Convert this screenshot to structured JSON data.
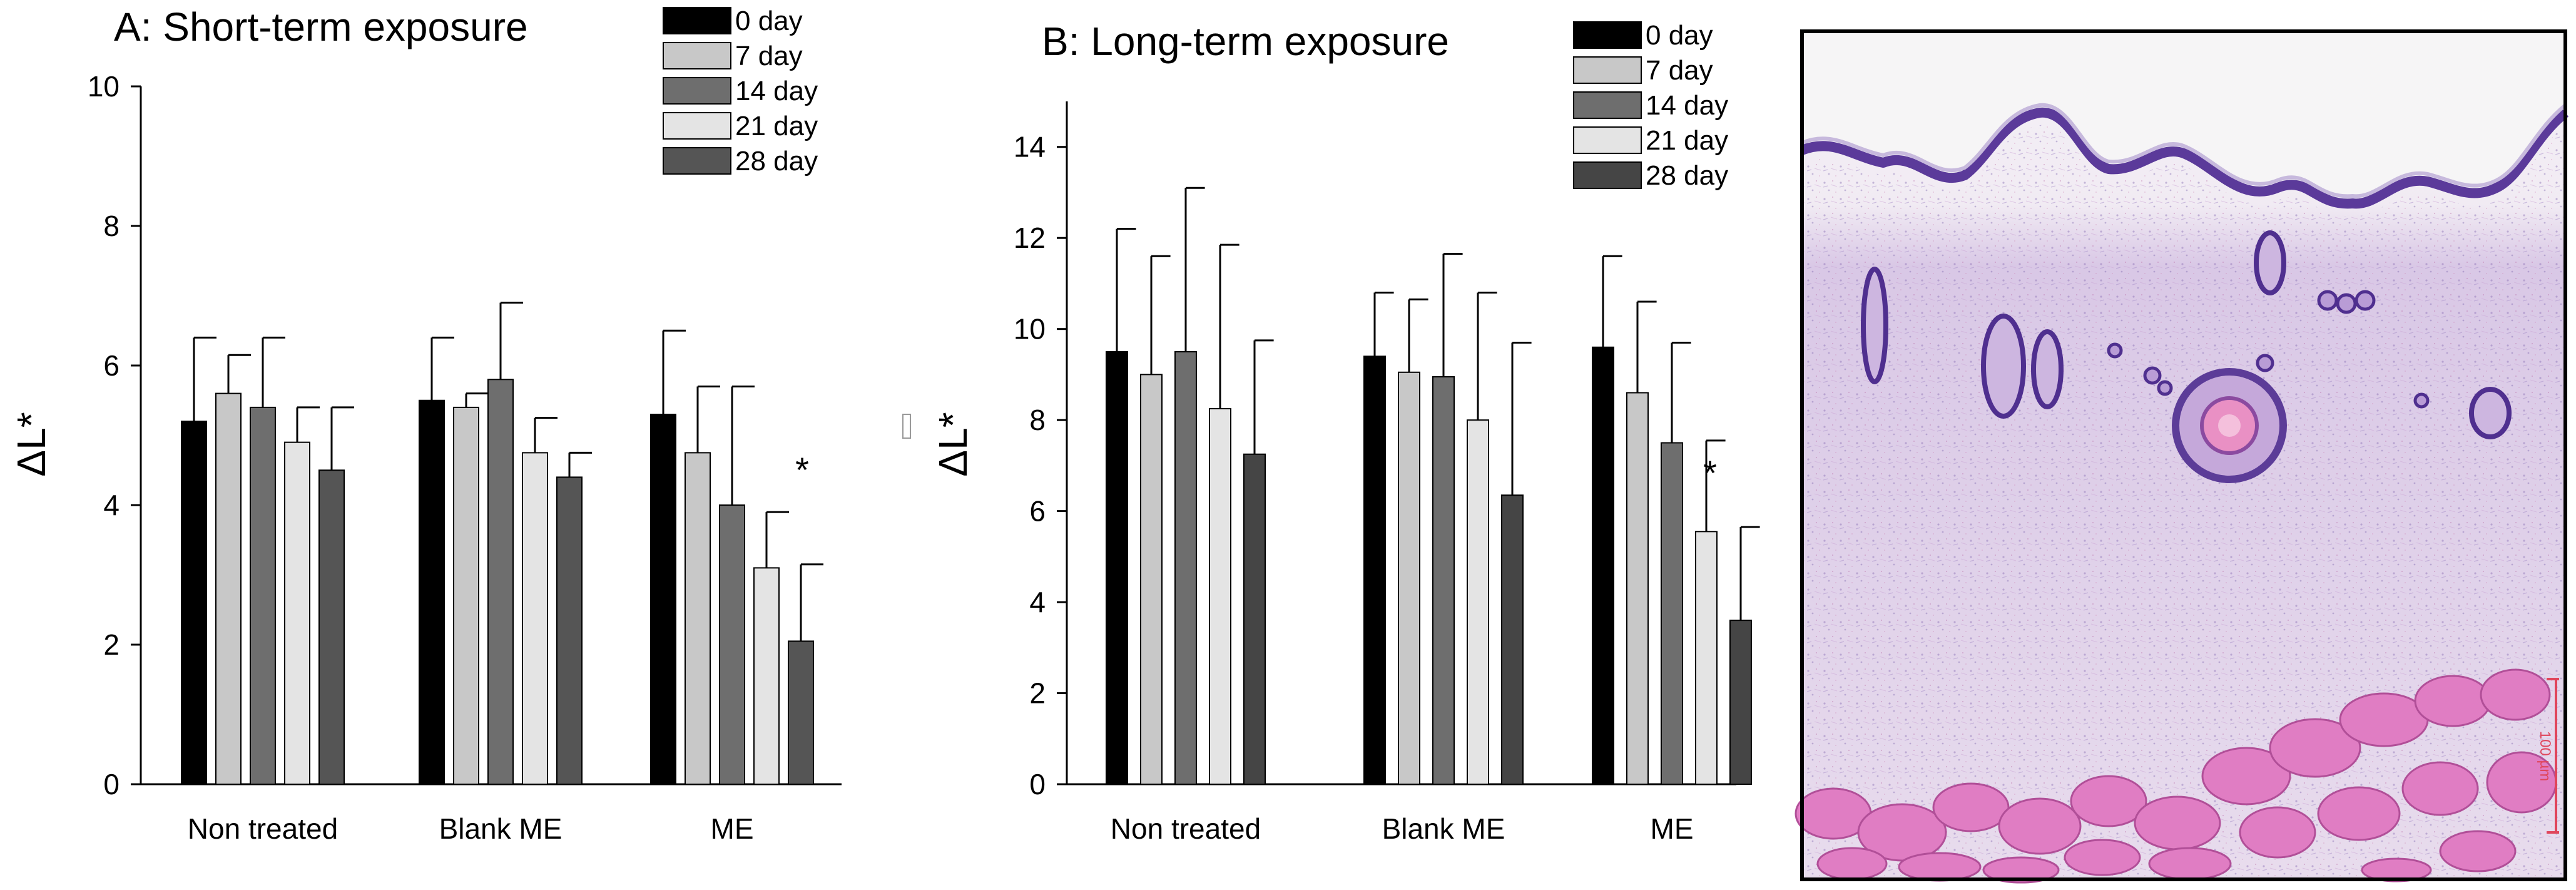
{
  "figure": {
    "histology_panel": {
      "description": "H&E stained skin tissue cross-section",
      "scale_bar_text": "100 µm"
    }
  },
  "chart_data": [
    {
      "type": "bar",
      "title": "A: Short-term exposure",
      "xlabel": "",
      "ylabel": "ΔL*",
      "ylim": [
        0,
        10
      ],
      "yticks": [
        0,
        2,
        4,
        6,
        8,
        10
      ],
      "grid": false,
      "legend_position": "top-right",
      "categories": [
        "Non treated",
        "Blank ME",
        "ME"
      ],
      "series": [
        {
          "name": "0 day",
          "color": "#000000",
          "values": [
            5.2,
            5.5,
            5.3
          ],
          "errors": [
            1.2,
            0.9,
            1.2
          ]
        },
        {
          "name": "7 day",
          "color": "#c8c8c8",
          "values": [
            5.6,
            5.4,
            4.75
          ],
          "errors": [
            0.55,
            0.2,
            0.95
          ]
        },
        {
          "name": "14 day",
          "color": "#6e6e6e",
          "values": [
            5.4,
            5.8,
            4.0
          ],
          "errors": [
            1.0,
            1.1,
            1.7
          ]
        },
        {
          "name": "21 day",
          "color": "#e4e4e4",
          "values": [
            4.9,
            4.75,
            3.1
          ],
          "errors": [
            0.5,
            0.5,
            0.8
          ]
        },
        {
          "name": "28 day",
          "color": "#555555",
          "values": [
            4.5,
            4.4,
            2.05
          ],
          "errors": [
            0.9,
            0.35,
            1.1
          ]
        }
      ],
      "annotations": [
        {
          "text": "*",
          "category": "ME"
        }
      ]
    },
    {
      "type": "bar",
      "title": "B: Long-term exposure",
      "xlabel": "",
      "ylabel": "ΔL*",
      "ylim": [
        0,
        15
      ],
      "yticks": [
        0,
        2,
        4,
        6,
        8,
        10,
        12,
        14
      ],
      "grid": false,
      "legend_position": "top-right",
      "categories": [
        "Non treated",
        "Blank ME",
        "ME"
      ],
      "series": [
        {
          "name": "0 day",
          "color": "#000000",
          "values": [
            9.5,
            9.4,
            9.6
          ],
          "errors": [
            2.7,
            1.4,
            2.0
          ]
        },
        {
          "name": "7 day",
          "color": "#c8c8c8",
          "values": [
            9.0,
            9.05,
            8.6
          ],
          "errors": [
            2.6,
            1.6,
            2.0
          ]
        },
        {
          "name": "14 day",
          "color": "#6e6e6e",
          "values": [
            9.5,
            8.95,
            7.5
          ],
          "errors": [
            3.6,
            2.7,
            2.2
          ]
        },
        {
          "name": "21 day",
          "color": "#e4e4e4",
          "values": [
            8.25,
            8.0,
            5.55
          ],
          "errors": [
            3.6,
            2.8,
            2.0
          ]
        },
        {
          "name": "28 day",
          "color": "#454545",
          "values": [
            7.25,
            6.35,
            3.6
          ],
          "errors": [
            2.5,
            3.35,
            2.05
          ]
        }
      ],
      "annotations": [
        {
          "text": "*",
          "category": "ME"
        }
      ]
    }
  ]
}
